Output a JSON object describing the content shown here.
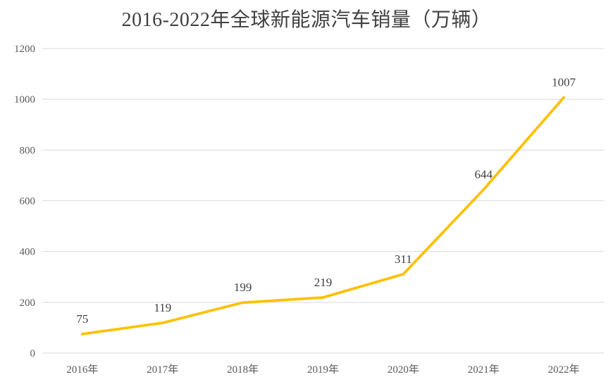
{
  "chart_data": {
    "type": "line",
    "title": "2016-2022年全球新能源汽车销量（万辆）",
    "categories": [
      "2016年",
      "2017年",
      "2018年",
      "2019年",
      "2020年",
      "2021年",
      "2022年"
    ],
    "values": [
      75,
      119,
      199,
      219,
      311,
      644,
      1007
    ],
    "yticks": [
      0,
      200,
      400,
      600,
      800,
      1000,
      1200
    ],
    "ylim": [
      0,
      1200
    ],
    "xlabel": "",
    "ylabel": "",
    "grid": true,
    "legend": "none",
    "data_labels_shown": true,
    "colors": {
      "line": "#FFC000",
      "gridline": "#D9D9D9",
      "axis_line": "#D9D9D9",
      "axis_tick_text": "#595959",
      "data_label_text": "#404040",
      "title_text": "#404040",
      "background": "#FFFFFF"
    }
  }
}
